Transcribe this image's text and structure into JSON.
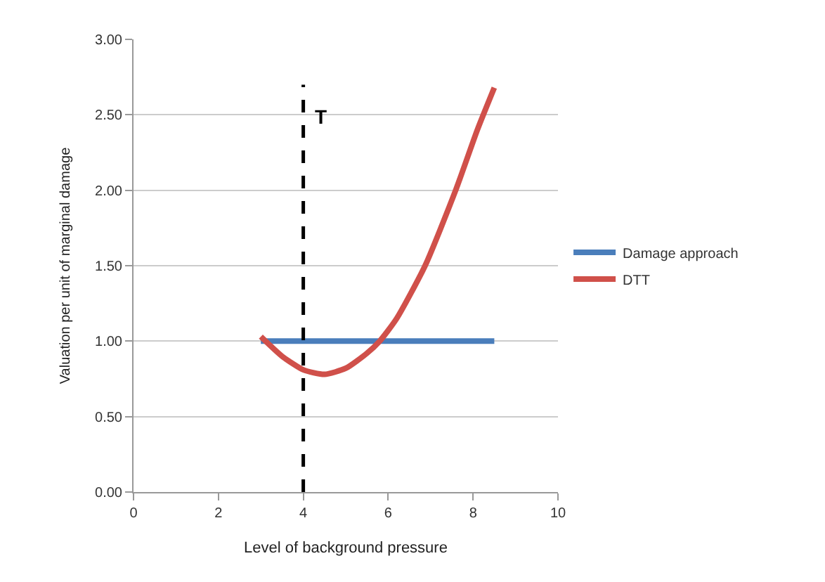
{
  "chart_data": {
    "type": "line",
    "xlabel": "Level of background pressure",
    "ylabel": "Valuation per unit of marginal damage",
    "xlim": [
      0,
      10
    ],
    "xticks": [
      0,
      2,
      4,
      6,
      8,
      10
    ],
    "ylim": [
      0,
      3
    ],
    "yticks": [
      {
        "value": 0,
        "label": "0.00"
      },
      {
        "value": 0.5,
        "label": "0.50"
      },
      {
        "value": 1,
        "label": "1.00"
      },
      {
        "value": 1.5,
        "label": "1.50"
      },
      {
        "value": 2,
        "label": "2.00"
      },
      {
        "value": 2.5,
        "label": "2.50"
      },
      {
        "value": 3,
        "label": "3.00"
      }
    ],
    "grid": "y",
    "legend": "right",
    "marker": "none",
    "series": [
      {
        "name": "Damage approach",
        "color": "#4a7ebb",
        "x": [
          3,
          8.5
        ],
        "values": [
          1.0,
          1.0
        ]
      },
      {
        "name": "DTT",
        "color": "#d0504a",
        "x": [
          3,
          3.5,
          4,
          4.5,
          5,
          5.5,
          5.8,
          6.2,
          6.87,
          7.59,
          8.1,
          8.5
        ],
        "values": [
          1.03,
          0.9,
          0.81,
          0.78,
          0.82,
          0.92,
          1.0,
          1.15,
          1.5,
          2.0,
          2.4,
          2.68
        ]
      }
    ],
    "ref_lines": [
      {
        "axis": "x",
        "value": 4,
        "label": "T",
        "color": "#000000",
        "line_style": "dashed"
      }
    ]
  }
}
